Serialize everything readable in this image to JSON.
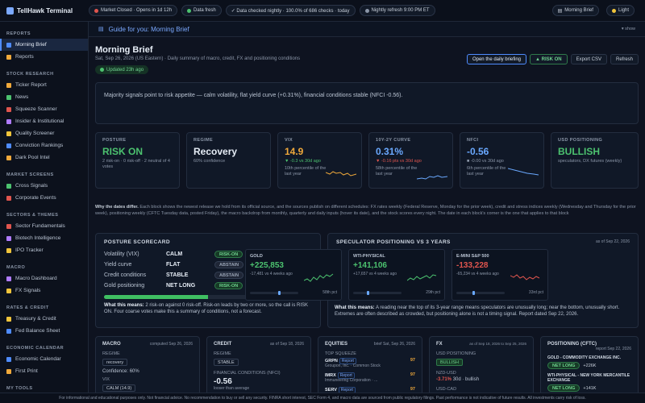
{
  "app": {
    "title": "TellHawk Terminal"
  },
  "topbar": {
    "market": "Market Closed · Opens in 1d 12h",
    "data_fresh": "Data fresh",
    "checked": "✓ Data checked nightly · 100.0% of 686 checks · today",
    "refresh": "Nightly refresh 9:00 PM ET",
    "morning_brief": "Morning Brief",
    "theme": "Light"
  },
  "sidebar": {
    "sections": [
      {
        "title": "REPORTS",
        "items": [
          "Morning Brief",
          "Reports"
        ]
      },
      {
        "title": "STOCK RESEARCH",
        "items": [
          "Ticker Report",
          "News",
          "Squeeze Scanner",
          "Insider & Institutional",
          "Quality Screener",
          "Conviction Rankings",
          "Dark Pool Intel"
        ]
      },
      {
        "title": "MARKET SCREENS",
        "items": [
          "Cross Signals",
          "Corporate Events"
        ]
      },
      {
        "title": "SECTORS & THEMES",
        "items": [
          "Sector Fundamentals",
          "Biotech Intelligence",
          "IPO Tracker"
        ]
      },
      {
        "title": "MACRO",
        "items": [
          "Macro Dashboard",
          "FX Signals"
        ]
      },
      {
        "title": "RATES & CREDIT",
        "items": [
          "Treasury & Credit",
          "Fed Balance Sheet"
        ]
      },
      {
        "title": "ECONOMIC CALENDAR",
        "items": [
          "Economic Calendar",
          "First Print"
        ]
      },
      {
        "title": "MY TOOLS",
        "items": []
      }
    ]
  },
  "guide": {
    "title": "Guide for you: Morning Brief",
    "show": "show"
  },
  "header": {
    "title": "Morning Brief",
    "subtitle": "Sat, Sep 26, 2026 (US Eastern) · Daily summary of macro, credit, FX and positioning conditions",
    "updated": "Updated 23h ago",
    "open_btn": "Open the daily briefing",
    "risk_btn": "▲ RISK ON",
    "export_btn": "Export CSV",
    "refresh_btn": "Refresh"
  },
  "summary": "Majority signals point to risk appetite — calm volatility, flat yield curve (+0.31%), financial conditions stable (NFCI -0.56).",
  "kpis": {
    "posture": {
      "label": "POSTURE",
      "value": "RISK ON",
      "sub": "2 risk-on · 0 risk-off · 2 neutral of 4 votes"
    },
    "regime": {
      "label": "REGIME",
      "value": "Recovery",
      "sub": "60% confidence"
    },
    "vix": {
      "label": "VIX",
      "value": "14.9",
      "delta": "▼ -0.3 vs 30d ago",
      "sub": "10th percentile of the last year"
    },
    "curve": {
      "label": "10Y-2Y CURVE",
      "value": "0.31%",
      "delta": "▼ -0.16 pts vs 30d ago",
      "sub": "58th percentile of the last year"
    },
    "nfci": {
      "label": "NFCI",
      "value": "-0.56",
      "delta": "■ -0.00 vs 30d ago",
      "sub": "6th percentile of the last year"
    },
    "usd": {
      "label": "USD POSITIONING",
      "value": "BULLISH",
      "sub": "speculators, DX futures (weekly)"
    }
  },
  "why": {
    "lead": "Why the dates differ.",
    "text": " Each block shows the newest release we hold from its official source, and the sources publish on different schedules: FX rates weekly (Federal Reserve, Monday for the prior week), credit and stress indices weekly (Wednesday and Thursday for the prior week), positioning weekly (CFTC Tuesday data, posted Friday), the macro backdrop from monthly, quarterly and daily inputs (hover its date), and the stock scores every night. The date in each block's corner is the one that applies to that block"
  },
  "scorecard": {
    "title": "POSTURE SCORECARD",
    "rows": [
      {
        "k": "Volatility (VIX)",
        "v": "CALM",
        "tag": "RISK-ON"
      },
      {
        "k": "Yield curve",
        "v": "FLAT",
        "tag": "ABSTAIN"
      },
      {
        "k": "Credit conditions",
        "v": "STABLE",
        "tag": "ABSTAIN"
      },
      {
        "k": "Gold positioning",
        "v": "NET LONG",
        "tag": "RISK-ON"
      }
    ],
    "progress": 0.5,
    "meaning_lead": "What this means:",
    "meaning": " 2 risk-on against 0 risk-off. Risk-on leads by two or more, so the call is RISK ON. Four coarse votes make this a summary of conditions, not a forecast."
  },
  "speculator": {
    "title": "SPECULATOR POSITIONING VS 3 YEARS",
    "date": "as of Sep 22, 2026",
    "items": [
      {
        "name": "GOLD",
        "value": "+225,853",
        "delta": "-17,481 vs 4 weeks ago",
        "pct": "58th pct",
        "pct_value": 58,
        "color": "#4cc26f"
      },
      {
        "name": "WTI-PHYSICAL",
        "value": "+141,106",
        "delta": "+17,657 vs 4 weeks ago",
        "pct": "29th pct",
        "pct_value": 29,
        "color": "#4cc26f"
      },
      {
        "name": "E-MINI S&P 500",
        "value": "-133,228",
        "delta": "-65,234 vs 4 weeks ago",
        "pct": "33rd pct",
        "pct_value": 33,
        "color": "#e0554e"
      }
    ],
    "meaning_lead": "What this means:",
    "meaning": " A reading near the top of its 3-year range means speculators are unusually long; near the bottom, unusually short. Extremes are often described as crowded, but positioning alone is not a timing signal. Report dated Sep 22, 2026."
  },
  "bottom": {
    "macro": {
      "title": "MACRO",
      "date": "computed Sep 26, 2026",
      "regime_label": "REGIME",
      "regime": "recovery",
      "confidence": "Confidence: 60%",
      "vix_label": "VIX",
      "vix": "CALM (14.9)"
    },
    "credit": {
      "title": "CREDIT",
      "date": "as of Sep 18, 2026",
      "regime_label": "REGIME",
      "regime": "STABLE",
      "nfci_label": "FINANCIAL CONDITIONS (NFCI)",
      "nfci": "-0.56",
      "nfci_sub": "looser than average"
    },
    "equities": {
      "title": "EQUITIES",
      "date": "brief Sat, Sep 26, 2026",
      "sq_label": "TOP SQUEEZE",
      "rows": [
        {
          "ticker": "GRPN",
          "report": "Report",
          "name": "Groupon, Inc. · Common Stock",
          "score": "97"
        },
        {
          "ticker": "IMRX",
          "report": "Report",
          "name": "Immuneering Corporation · ...",
          "score": "97"
        },
        {
          "ticker": "SERV",
          "report": "Report",
          "name": "Serve Robotics Inc. · Comm...",
          "score": "97"
        }
      ]
    },
    "fx": {
      "title": "FX",
      "date": "as of Sep 18, 2026 to Sep 25, 2026",
      "usd_label": "USD POSITIONING",
      "usd": "BULLISH",
      "pair_label": "NZD-USD",
      "pair": "-3.71%",
      "pair_sub": "30d · bullish",
      "pair2": "USD-CAD"
    },
    "cftc": {
      "title": "POSITIONING (CFTC)",
      "date": "report Sep 22, 2026",
      "rows": [
        {
          "name": "GOLD - COMMODITY EXCHANGE INC.",
          "tag": "NET LONG",
          "val": "+226K"
        },
        {
          "name": "WTI-PHYSICAL - NEW YORK MERCANTILE EXCHANGE",
          "tag": "NET LONG",
          "val": "+141K"
        }
      ]
    }
  },
  "footer": "For informational and educational purposes only. Not financial advice. No recommendation to buy or sell any security. FINRA short interest, SEC Form 4, and macro data are sourced from public regulatory filings. Past performance is not indicative of future results. All investments carry risk of loss."
}
